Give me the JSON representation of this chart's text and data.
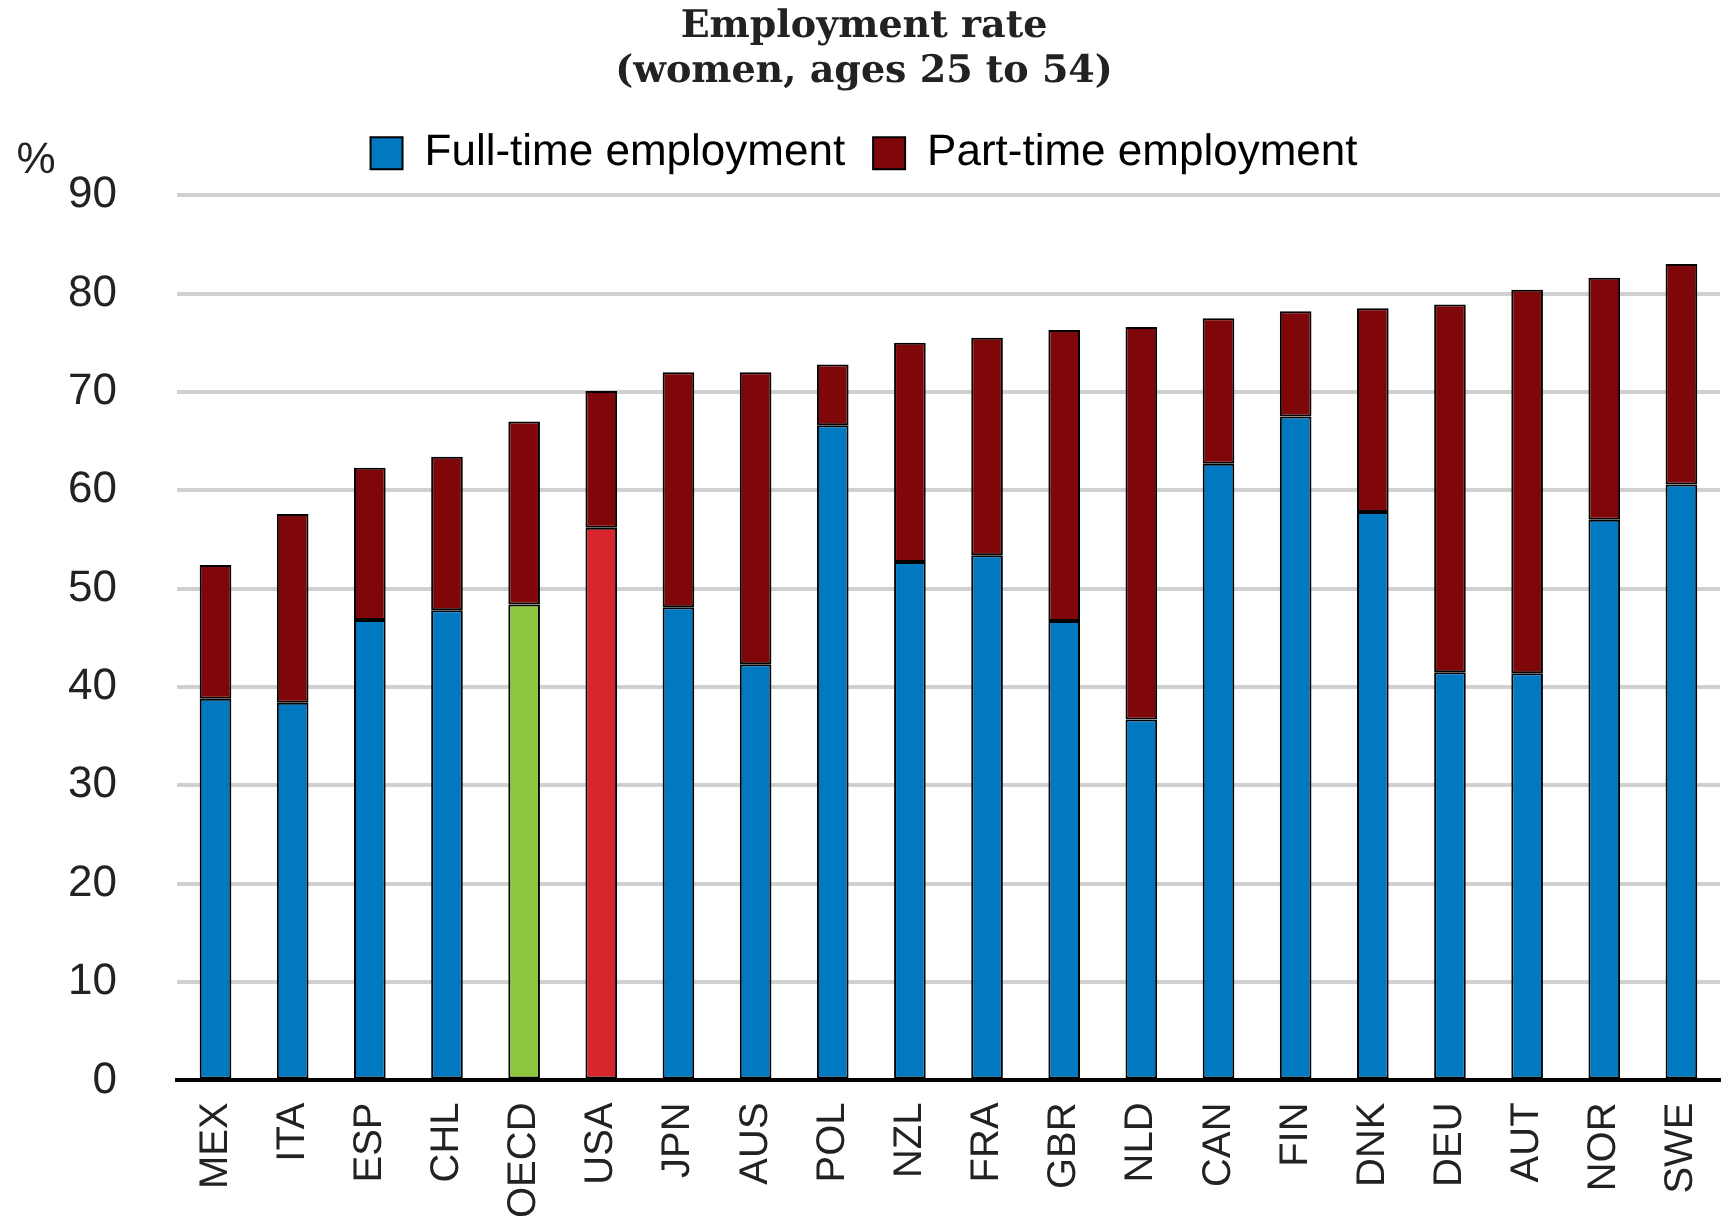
{
  "chart_data": {
    "type": "bar",
    "title": [
      "Employment rate",
      "(women, ages 25 to 54)"
    ],
    "ylabel": "%",
    "categories": [
      "MEX",
      "ITA",
      "ESP",
      "CHL",
      "OECD",
      "USA",
      "JPN",
      "AUS",
      "POL",
      "NZL",
      "FRA",
      "GBR",
      "NLD",
      "CAN",
      "FIN",
      "DNK",
      "DEU",
      "AUT",
      "NOR",
      "SWE"
    ],
    "stacked": true,
    "series": [
      {
        "name": "Full-time employment",
        "color": "#0079c1",
        "colors": [
          "#0079c1",
          "#0079c1",
          "#0079c1",
          "#0079c1",
          "#8dc63f",
          "#d7262e",
          "#0079c1",
          "#0079c1",
          "#0079c1",
          "#0079c1",
          "#0079c1",
          "#0079c1",
          "#0079c1",
          "#0079c1",
          "#0079c1",
          "#0079c1",
          "#0079c1",
          "#0079c1",
          "#0079c1",
          "#0079c1"
        ],
        "values": [
          38.8,
          38.4,
          46.8,
          47.8,
          48.4,
          56.2,
          48.1,
          42.3,
          66.6,
          52.7,
          53.4,
          46.7,
          36.7,
          62.7,
          67.5,
          57.8,
          41.5,
          41.4,
          57.0,
          60.6
        ]
      },
      {
        "name": "Part-time employment",
        "color": "#7f0609",
        "values": [
          13.6,
          19.2,
          15.5,
          15.6,
          18.6,
          13.9,
          23.9,
          29.7,
          6.2,
          22.3,
          22.1,
          29.6,
          39.9,
          14.8,
          10.7,
          20.7,
          37.4,
          39.0,
          24.6,
          22.4
        ]
      }
    ],
    "ylim": [
      0,
      90
    ],
    "yticks": [
      0,
      10,
      20,
      30,
      40,
      50,
      60,
      70,
      80,
      90
    ],
    "grid": "y",
    "legend": "top"
  }
}
